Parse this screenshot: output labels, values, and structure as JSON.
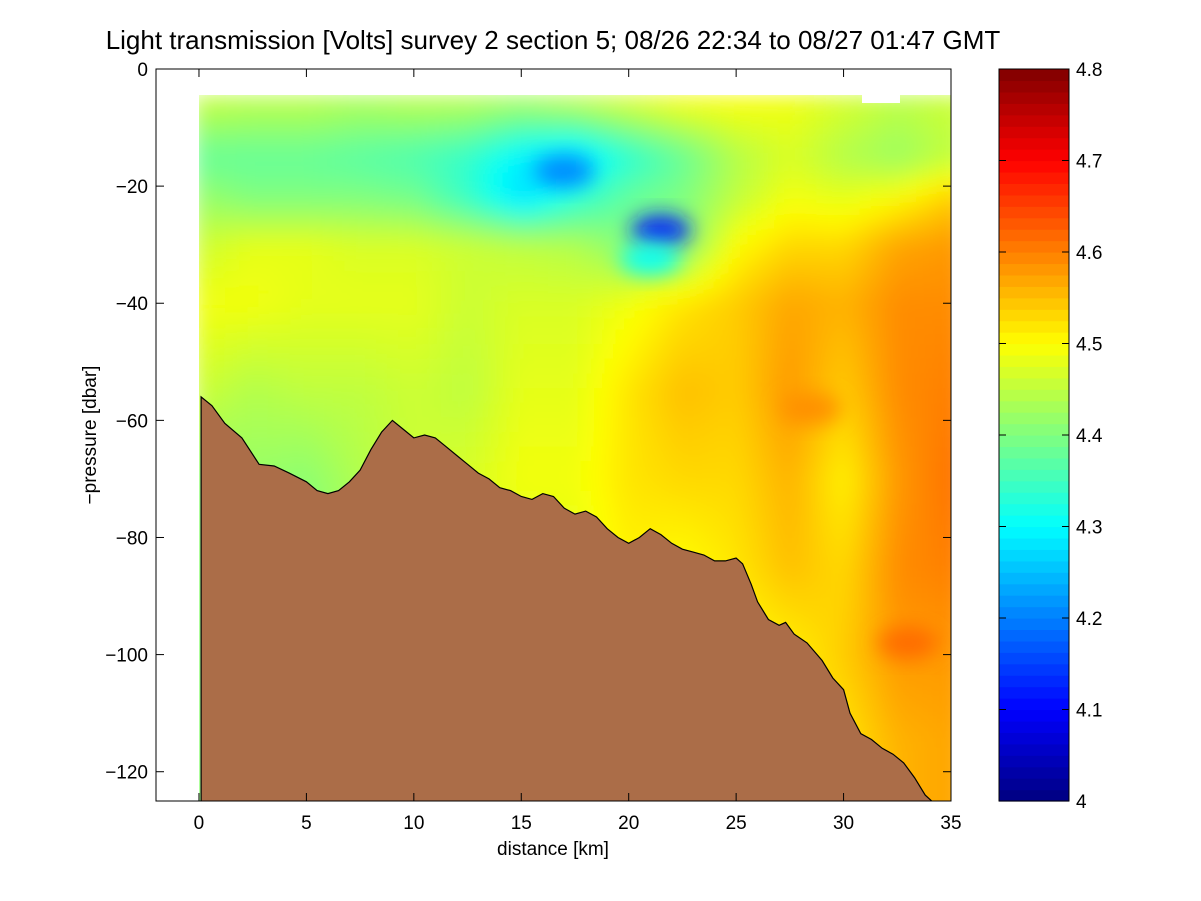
{
  "chart_data": {
    "type": "heatmap",
    "title": "Light transmission [Volts] survey 2 section 5; 08/26 22:34 to 08/27 01:47 GMT",
    "xlabel": "distance [km]",
    "ylabel": "−pressure [dbar]",
    "xlim": [
      -2,
      35
    ],
    "ylim": [
      -125,
      0
    ],
    "x_ticks": [
      0,
      5,
      10,
      15,
      20,
      25,
      30,
      35
    ],
    "x_tick_labels": [
      "0",
      "5",
      "10",
      "15",
      "20",
      "25",
      "30",
      "35"
    ],
    "y_ticks": [
      0,
      -20,
      -40,
      -60,
      -80,
      -100,
      -120
    ],
    "y_tick_labels": [
      "0",
      "−20",
      "−40",
      "−60",
      "−80",
      "−100",
      "−120"
    ],
    "colorbar": {
      "colormap": "jet",
      "range": [
        4.0,
        4.8
      ],
      "ticks": [
        4.0,
        4.1,
        4.2,
        4.3,
        4.4,
        4.5,
        4.6,
        4.7,
        4.8
      ],
      "tick_labels": [
        "4",
        "4.1",
        "4.2",
        "4.3",
        "4.4",
        "4.5",
        "4.6",
        "4.7",
        "4.8"
      ]
    },
    "data_top_depth": -4.5,
    "field_grid": {
      "x": [
        0,
        2.5,
        5,
        7.5,
        10,
        12.5,
        15,
        17.5,
        20,
        22.5,
        25,
        27.5,
        30,
        32.5,
        35
      ],
      "depths": [
        -5,
        -15,
        -22,
        -30,
        -40,
        -55,
        -70,
        -85,
        -100,
        -115
      ],
      "values": [
        [
          4.46,
          4.45,
          4.45,
          4.44,
          4.45,
          4.45,
          4.44,
          4.46,
          4.48,
          4.5,
          4.5,
          4.49,
          4.47,
          4.45,
          4.46
        ],
        [
          4.38,
          4.38,
          4.38,
          4.37,
          4.36,
          4.34,
          4.29,
          4.27,
          4.33,
          4.38,
          4.44,
          4.47,
          4.44,
          4.42,
          4.45
        ],
        [
          4.42,
          4.4,
          4.4,
          4.4,
          4.39,
          4.34,
          4.27,
          4.33,
          4.38,
          4.4,
          4.45,
          4.49,
          4.48,
          4.5,
          4.54
        ],
        [
          4.46,
          4.48,
          4.48,
          4.47,
          4.47,
          4.46,
          4.45,
          4.44,
          4.4,
          4.4,
          4.5,
          4.53,
          4.53,
          4.57,
          4.58
        ],
        [
          4.49,
          4.49,
          4.48,
          4.48,
          4.48,
          4.46,
          4.47,
          4.47,
          4.49,
          4.52,
          4.54,
          4.57,
          4.56,
          4.59,
          4.59
        ],
        [
          4.46,
          4.44,
          4.45,
          4.45,
          4.46,
          4.45,
          4.48,
          4.48,
          4.52,
          4.55,
          4.54,
          4.58,
          4.54,
          4.59,
          4.6
        ],
        [
          4.41,
          4.42,
          4.41,
          4.44,
          4.46,
          4.47,
          4.49,
          4.49,
          4.52,
          4.53,
          4.53,
          4.56,
          4.51,
          4.58,
          4.61
        ],
        [
          4.41,
          4.42,
          4.41,
          4.42,
          4.45,
          4.46,
          4.47,
          4.48,
          4.51,
          4.5,
          4.52,
          4.55,
          4.53,
          4.59,
          4.6
        ],
        [
          4.41,
          4.41,
          4.41,
          4.41,
          4.44,
          4.45,
          4.46,
          4.47,
          4.49,
          4.49,
          4.5,
          4.51,
          4.54,
          4.58,
          4.58
        ],
        [
          4.41,
          4.41,
          4.41,
          4.41,
          4.44,
          4.45,
          4.46,
          4.47,
          4.49,
          4.49,
          4.5,
          4.51,
          4.52,
          4.56,
          4.57
        ]
      ]
    },
    "anomalies": [
      {
        "x": 17.0,
        "depth": -17.5,
        "value": 4.2
      },
      {
        "x": 21.5,
        "depth": -27.5,
        "value": 4.12
      },
      {
        "x": 21.0,
        "depth": -32.5,
        "value": 4.3
      },
      {
        "x": 28.5,
        "depth": -58.0,
        "value": 4.59
      },
      {
        "x": 33.0,
        "depth": -98.0,
        "value": 4.62
      }
    ],
    "seafloor": {
      "fill_color": "#ab6d48",
      "profile": [
        [
          0.1,
          -56.0
        ],
        [
          0.6,
          -57.5
        ],
        [
          1.2,
          -60.5
        ],
        [
          2.0,
          -63.0
        ],
        [
          2.8,
          -67.5
        ],
        [
          3.5,
          -67.8
        ],
        [
          4.2,
          -69.0
        ],
        [
          5.0,
          -70.5
        ],
        [
          5.5,
          -72.0
        ],
        [
          6.0,
          -72.5
        ],
        [
          6.5,
          -72.0
        ],
        [
          7.0,
          -70.5
        ],
        [
          7.5,
          -68.5
        ],
        [
          8.0,
          -65.0
        ],
        [
          8.5,
          -62.0
        ],
        [
          9.0,
          -60.0
        ],
        [
          9.5,
          -61.5
        ],
        [
          10.0,
          -63.0
        ],
        [
          10.5,
          -62.5
        ],
        [
          11.0,
          -63.0
        ],
        [
          11.5,
          -64.5
        ],
        [
          12.0,
          -66.0
        ],
        [
          12.5,
          -67.5
        ],
        [
          13.0,
          -69.0
        ],
        [
          13.5,
          -70.0
        ],
        [
          14.0,
          -71.5
        ],
        [
          14.5,
          -72.0
        ],
        [
          15.0,
          -73.0
        ],
        [
          15.5,
          -73.5
        ],
        [
          16.0,
          -72.5
        ],
        [
          16.5,
          -73.0
        ],
        [
          17.0,
          -75.0
        ],
        [
          17.5,
          -76.0
        ],
        [
          18.0,
          -75.5
        ],
        [
          18.5,
          -76.5
        ],
        [
          19.0,
          -78.5
        ],
        [
          19.5,
          -80.0
        ],
        [
          20.0,
          -81.0
        ],
        [
          20.5,
          -80.0
        ],
        [
          21.0,
          -78.5
        ],
        [
          21.5,
          -79.5
        ],
        [
          22.0,
          -81.0
        ],
        [
          22.5,
          -82.0
        ],
        [
          23.0,
          -82.5
        ],
        [
          23.5,
          -83.0
        ],
        [
          24.0,
          -84.0
        ],
        [
          24.5,
          -84.0
        ],
        [
          25.0,
          -83.5
        ],
        [
          25.3,
          -84.5
        ],
        [
          25.7,
          -88.0
        ],
        [
          26.0,
          -91.0
        ],
        [
          26.5,
          -94.0
        ],
        [
          27.0,
          -95.0
        ],
        [
          27.3,
          -94.5
        ],
        [
          27.7,
          -96.5
        ],
        [
          28.3,
          -98.0
        ],
        [
          29.0,
          -101.0
        ],
        [
          29.5,
          -104.0
        ],
        [
          30.0,
          -106.0
        ],
        [
          30.3,
          -110.0
        ],
        [
          30.8,
          -113.5
        ],
        [
          31.3,
          -114.5
        ],
        [
          31.8,
          -116.0
        ],
        [
          32.3,
          -117.0
        ],
        [
          32.8,
          -118.5
        ],
        [
          33.3,
          -121.0
        ],
        [
          33.8,
          -124.0
        ],
        [
          34.1,
          -125.0
        ]
      ]
    }
  }
}
